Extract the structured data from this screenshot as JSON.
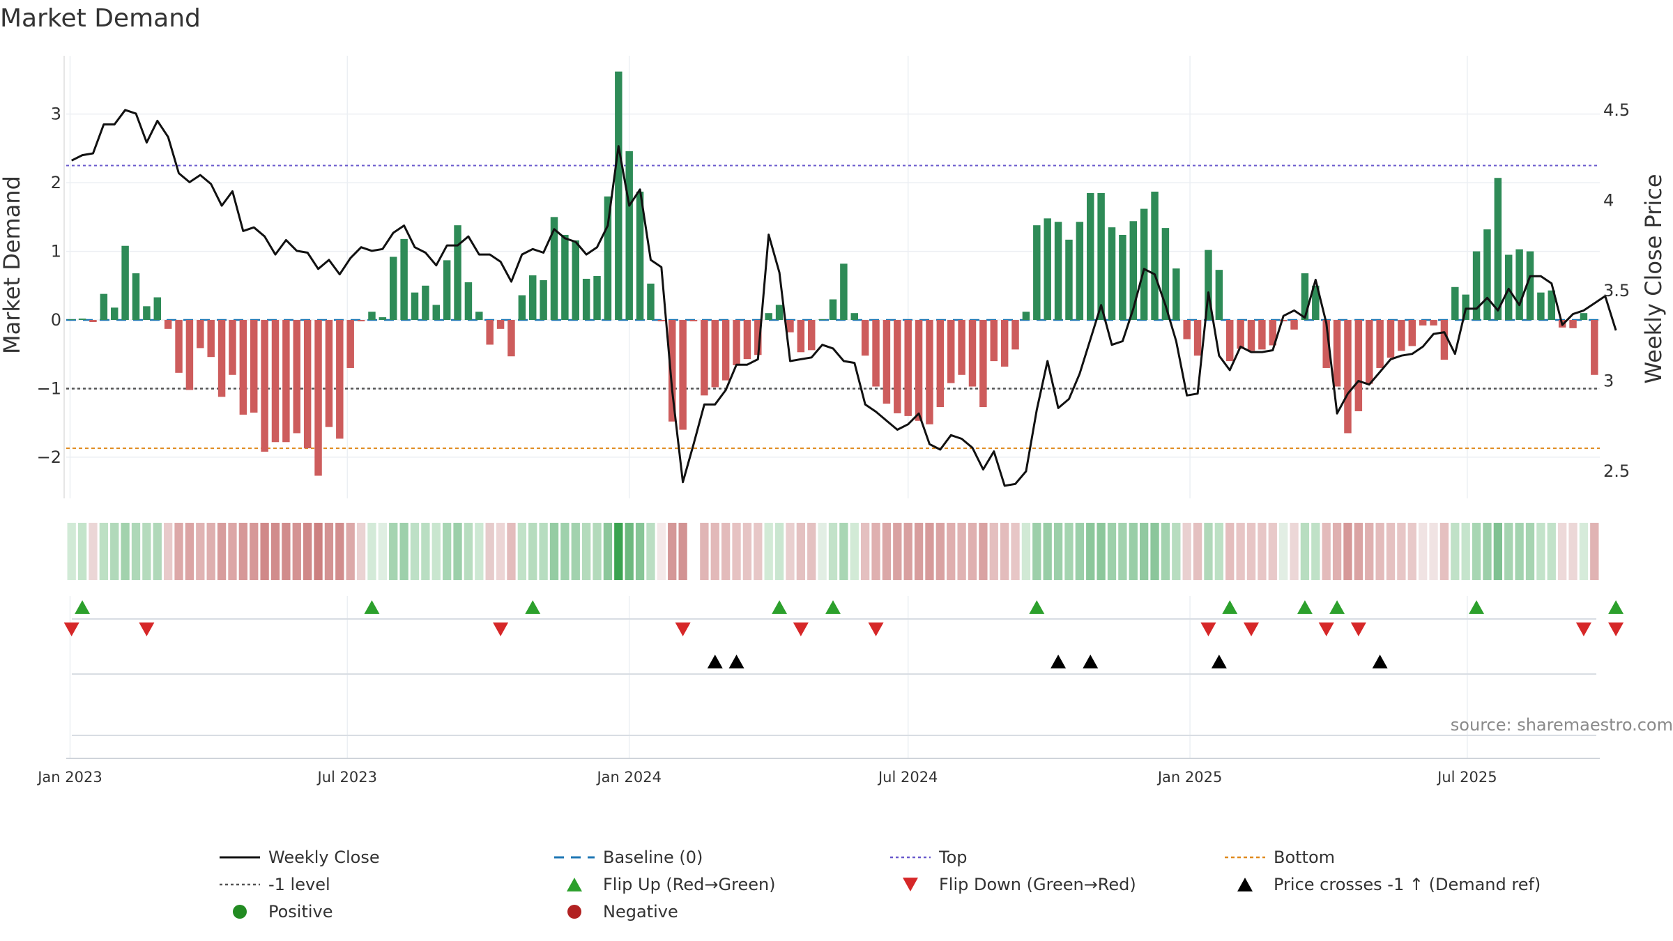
{
  "chart_data": {
    "type": "bar",
    "title": "Market Demand",
    "ylabel": "Market Demand",
    "y2label": "Weekly Close Price",
    "ylim": [
      -2.6,
      3.85
    ],
    "y2lim": [
      2.35,
      4.8
    ],
    "yticks": [
      -2,
      -1,
      0,
      1,
      2,
      3
    ],
    "ytick_labels": [
      "−2",
      "−1",
      "0",
      "1",
      "2",
      "3"
    ],
    "y2ticks": [
      2.5,
      3,
      3.5,
      4,
      4.5
    ],
    "y2tick_labels": [
      "2.5",
      "3",
      "3.5",
      "4",
      "4.5"
    ],
    "x_ticks": [
      "Jan 2023",
      "Jul 2023",
      "Jan 2024",
      "Jul 2024",
      "Jan 2025",
      "Jul 2025"
    ],
    "start_week": "2023-01-02",
    "reference_lines": {
      "baseline": 0,
      "minus_one": -1,
      "top": 2.25,
      "bottom": -1.87
    },
    "colors": {
      "positive_bar": "#2e8b57",
      "negative_bar": "#cd5c5c",
      "price_line": "#111111",
      "top_line": "#6a5acd",
      "bottom_line": "#e08a1e",
      "baseline": "#1f77b4",
      "minus_one_line": "#555555",
      "flip_up": "#2ca02c",
      "flip_down": "#d62728",
      "cross": "#000000"
    },
    "demand_series": [
      0.01,
      0.02,
      -0.03,
      0.38,
      0.18,
      1.08,
      0.68,
      0.2,
      0.33,
      -0.13,
      -0.77,
      -1.02,
      -0.41,
      -0.54,
      -1.12,
      -0.8,
      -1.38,
      -1.35,
      -1.92,
      -1.78,
      -1.78,
      -1.65,
      -1.87,
      -2.27,
      -1.56,
      -1.73,
      -0.7,
      -0.02,
      0.12,
      0.04,
      0.92,
      1.18,
      0.4,
      0.5,
      0.22,
      0.87,
      1.38,
      0.55,
      0.12,
      -0.36,
      -0.13,
      -0.53,
      0.36,
      0.65,
      0.58,
      1.5,
      1.24,
      1.16,
      0.6,
      0.64,
      1.8,
      3.62,
      2.46,
      1.87,
      0.53,
      -0.02,
      -1.48,
      -1.6,
      -0.02,
      -1.1,
      -0.98,
      -0.88,
      -0.66,
      -0.57,
      -0.51,
      0.1,
      0.22,
      -0.18,
      -0.47,
      -0.44,
      0.01,
      0.3,
      0.82,
      0.1,
      -0.52,
      -0.97,
      -1.22,
      -1.36,
      -1.4,
      -1.47,
      -1.52,
      -1.27,
      -0.92,
      -0.8,
      -0.97,
      -1.27,
      -0.6,
      -0.68,
      -0.43,
      0.12,
      1.38,
      1.48,
      1.43,
      1.17,
      1.43,
      1.85,
      1.85,
      1.35,
      1.24,
      1.44,
      1.62,
      1.87,
      1.34,
      0.75,
      -0.28,
      -0.52,
      1.02,
      0.73,
      -0.6,
      -0.42,
      -0.45,
      -0.43,
      -0.37,
      -0.02,
      -0.14,
      0.68,
      0.5,
      -0.7,
      -0.97,
      -1.65,
      -1.33,
      -0.93,
      -0.7,
      -0.55,
      -0.45,
      -0.38,
      -0.08,
      -0.08,
      -0.58,
      0.48,
      0.37,
      1.0,
      1.32,
      2.07,
      0.95,
      1.03,
      1.0,
      0.4,
      0.43,
      -0.11,
      -0.12,
      0.1,
      -0.8
    ],
    "price_series": [
      4.22,
      4.25,
      4.26,
      4.42,
      4.42,
      4.5,
      4.48,
      4.32,
      4.44,
      4.35,
      4.15,
      4.1,
      4.14,
      4.09,
      3.97,
      4.05,
      3.83,
      3.85,
      3.8,
      3.7,
      3.78,
      3.72,
      3.71,
      3.62,
      3.67,
      3.59,
      3.68,
      3.74,
      3.72,
      3.73,
      3.82,
      3.86,
      3.74,
      3.71,
      3.64,
      3.75,
      3.75,
      3.8,
      3.7,
      3.7,
      3.66,
      3.55,
      3.7,
      3.73,
      3.71,
      3.84,
      3.79,
      3.77,
      3.7,
      3.74,
      3.86,
      4.3,
      3.97,
      4.06,
      3.67,
      3.63,
      2.95,
      2.44,
      2.65,
      2.87,
      2.87,
      2.95,
      3.09,
      3.09,
      3.12,
      3.81,
      3.6,
      3.11,
      3.12,
      3.13,
      3.2,
      3.18,
      3.11,
      3.1,
      2.87,
      2.83,
      2.78,
      2.73,
      2.76,
      2.82,
      2.65,
      2.62,
      2.7,
      2.68,
      2.63,
      2.51,
      2.61,
      2.42,
      2.43,
      2.5,
      2.84,
      3.11,
      2.85,
      2.9,
      3.04,
      3.23,
      3.42,
      3.2,
      3.22,
      3.4,
      3.62,
      3.59,
      3.42,
      3.22,
      2.92,
      2.93,
      3.49,
      3.14,
      3.06,
      3.19,
      3.16,
      3.16,
      3.17,
      3.36,
      3.39,
      3.35,
      3.56,
      3.32,
      2.82,
      2.93,
      3.0,
      2.98,
      3.05,
      3.12,
      3.14,
      3.15,
      3.19,
      3.26,
      3.27,
      3.15,
      3.4,
      3.4,
      3.46,
      3.39,
      3.51,
      3.42,
      3.58,
      3.58,
      3.54,
      3.31,
      3.37,
      3.39,
      3.43,
      3.47,
      3.28
    ],
    "heat_colors": [
      "#d1ead6",
      "#c3e4ca",
      "#ebd6d6",
      "#bde0c4",
      "#b1d9ba",
      "#a2d2ad",
      "#aed8b8",
      "#b5dbbd",
      "#b0d8b9",
      "#e8caca",
      "#dca8a8",
      "#dba4a4",
      "#e0b3b3",
      "#deafaf",
      "#d79c9c",
      "#dca6a6",
      "#d69898",
      "#d69898",
      "#d08989",
      "#d18c8c",
      "#d18c8c",
      "#d49393",
      "#d08989",
      "#cc8080",
      "#d39393",
      "#d18d8d",
      "#dca9a9",
      "#ead3d3",
      "#d3ead8",
      "#dfeee2",
      "#a5d4b1",
      "#9dd0ab",
      "#bde0c6",
      "#b9dec2",
      "#c9e6cf",
      "#a8d6b4",
      "#9bcfa9",
      "#b8ddc0",
      "#cde8d3",
      "#e6cbcb",
      "#ecd5d5",
      "#e3bcbc",
      "#c1e2c8",
      "#b6dcbe",
      "#b7ddc0",
      "#95cca3",
      "#9fd1ac",
      "#a2d2ae",
      "#b4dbbc",
      "#b3dabb",
      "#8cc79b",
      "#3aa350",
      "#6db97f",
      "#87c597",
      "#bbdec3",
      "#f4e9e9",
      "#d49797",
      "#d29393",
      "#ffffff",
      "#e0b5b5",
      "#e2b9b9",
      "#e3bbbb",
      "#e6c2c2",
      "#e6c4c4",
      "#e7c7c7",
      "#d2ead6",
      "#cae6d0",
      "#e9cfcf",
      "#e4c1c1",
      "#e4c1c1",
      "#e2eee4",
      "#c2e2c9",
      "#a9d6b4",
      "#d2ead6",
      "#e4c0c0",
      "#dfb0b0",
      "#dba7a7",
      "#d9a2a2",
      "#d8a0a0",
      "#d79d9d",
      "#d69a9a",
      "#d9a2a2",
      "#dfaeae",
      "#e0b3b3",
      "#dfb0b0",
      "#d9a2a2",
      "#e4bfbf",
      "#e3bcbc",
      "#e7c6c6",
      "#d1e9d5",
      "#9dcfaa",
      "#98cda6",
      "#9ccfa9",
      "#a5d4b0",
      "#9bcfa9",
      "#8cc79b",
      "#8cc79b",
      "#9dd0aa",
      "#a2d2ae",
      "#99cea7",
      "#91c9a0",
      "#8bc69b",
      "#a3d3af",
      "#b8ddc0",
      "#e9d0d0",
      "#e4c0c0",
      "#b0d8b9",
      "#bde0c4",
      "#e4bdbd",
      "#e7c5c5",
      "#e7c5c5",
      "#e7c6c6",
      "#e8c9c9",
      "#e2eee4",
      "#ecd7d7",
      "#b8ddc0",
      "#c0e1c7",
      "#e3bbbb",
      "#dfb0b0",
      "#d69898",
      "#daa3a3",
      "#dfb0b0",
      "#e3bbbb",
      "#e5c1c1",
      "#e7c6c6",
      "#e8c9c9",
      "#f0e3e3",
      "#f0e3e3",
      "#e5c0c0",
      "#c0e1c7",
      "#c5e4cc",
      "#a8d6b3",
      "#9ccfa9",
      "#7fc191",
      "#a6d4b1",
      "#a3d3af",
      "#a6d4b1",
      "#c3e3ca",
      "#c2e2c9",
      "#edd9d9",
      "#ecd7d7",
      "#d6ebda",
      "#e0b3b3"
    ],
    "flip_up_weeks": [
      1,
      28,
      43,
      66,
      71,
      90,
      108,
      115,
      118,
      131,
      144
    ],
    "flip_down_weeks": [
      0,
      7,
      40,
      57,
      68,
      75,
      106,
      110,
      117,
      120,
      141,
      144
    ],
    "cross_weeks": [
      60,
      62,
      92,
      95,
      107,
      122
    ],
    "legend": [
      "Weekly Close",
      "Baseline (0)",
      "Top",
      "Bottom",
      "-1 level",
      "Flip Up (Red→Green)",
      "Flip Down (Green→Red)",
      "Price crosses -1 ↑ (Demand ref)",
      "Positive",
      "Negative"
    ],
    "source": "source: sharemaestro.com"
  }
}
